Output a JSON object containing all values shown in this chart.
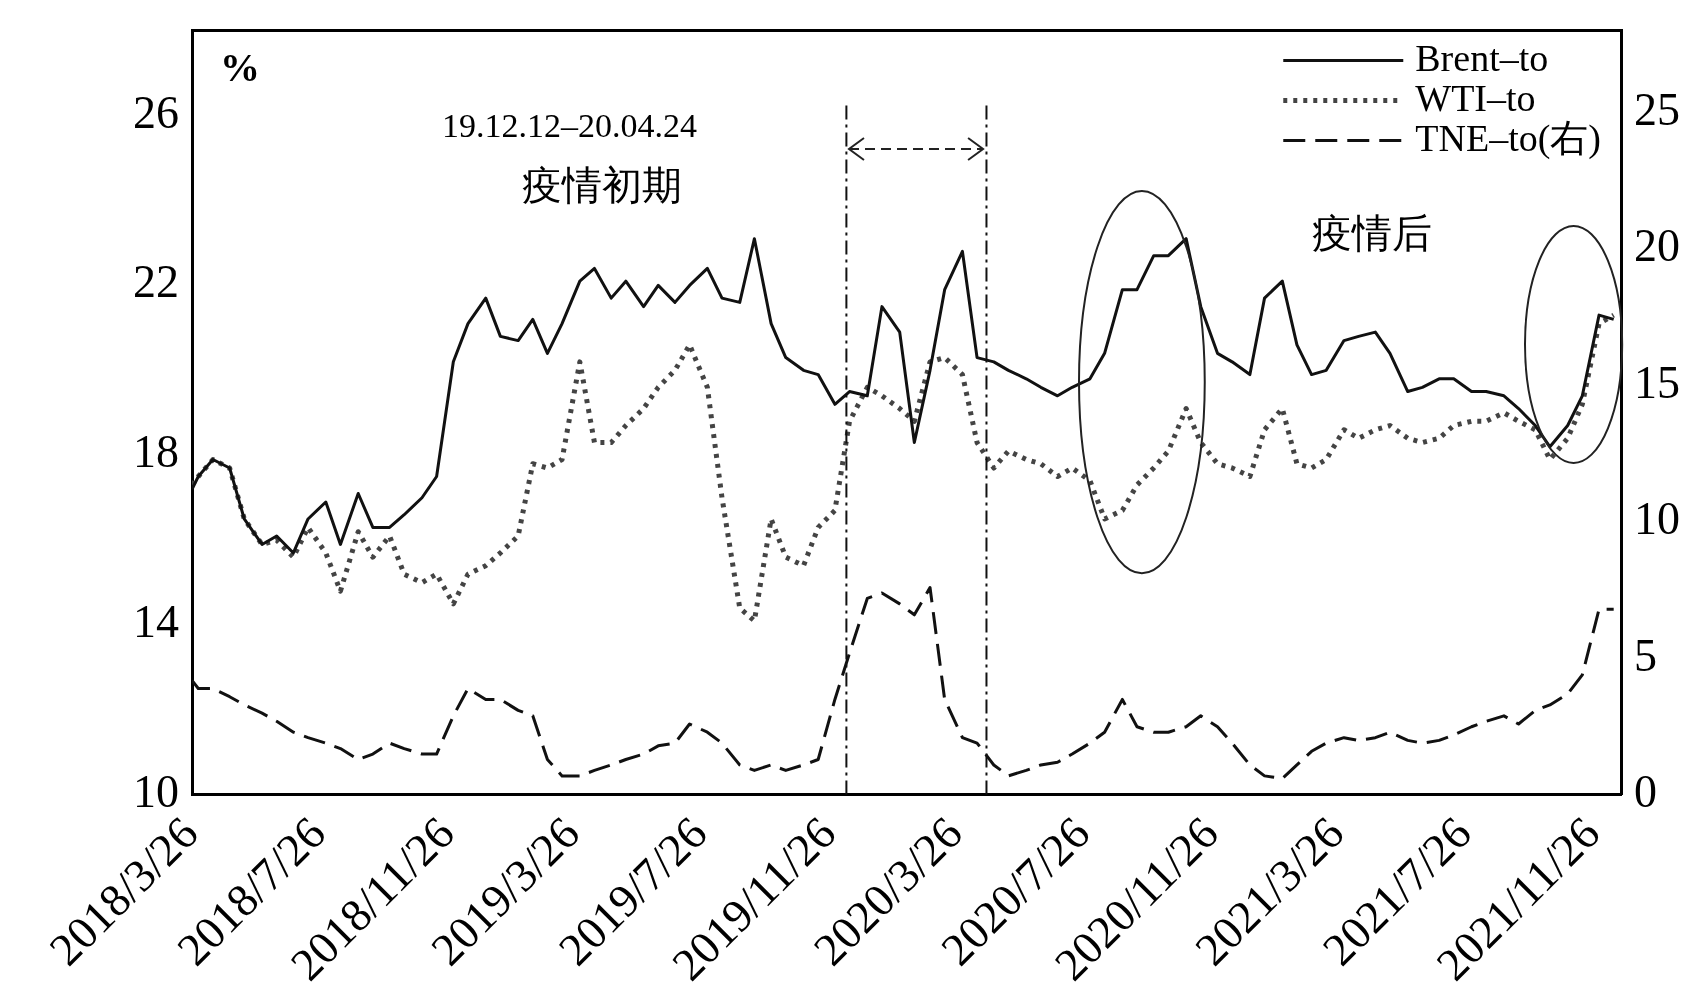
{
  "chart_data": {
    "type": "line",
    "ylabel": "%",
    "x": [
      "2018-03-26",
      "2018-04-01",
      "2018-04-15",
      "2018-05-01",
      "2018-05-15",
      "2018-06-01",
      "2018-06-15",
      "2018-07-01",
      "2018-07-15",
      "2018-08-01",
      "2018-08-15",
      "2018-09-01",
      "2018-09-15",
      "2018-10-01",
      "2018-10-15",
      "2018-11-01",
      "2018-11-15",
      "2018-12-01",
      "2018-12-15",
      "2019-01-01",
      "2019-01-15",
      "2019-02-01",
      "2019-02-15",
      "2019-03-01",
      "2019-03-15",
      "2019-04-01",
      "2019-04-15",
      "2019-05-01",
      "2019-05-15",
      "2019-06-01",
      "2019-06-15",
      "2019-07-01",
      "2019-07-15",
      "2019-08-01",
      "2019-08-15",
      "2019-09-01",
      "2019-09-15",
      "2019-10-01",
      "2019-10-15",
      "2019-11-01",
      "2019-11-15",
      "2019-12-01",
      "2019-12-15",
      "2020-01-01",
      "2020-01-15",
      "2020-02-01",
      "2020-02-15",
      "2020-03-01",
      "2020-03-15",
      "2020-04-01",
      "2020-04-15",
      "2020-05-01",
      "2020-05-15",
      "2020-06-01",
      "2020-06-15",
      "2020-07-01",
      "2020-07-15",
      "2020-08-01",
      "2020-08-15",
      "2020-09-01",
      "2020-09-15",
      "2020-10-01",
      "2020-10-15",
      "2020-11-01",
      "2020-11-15",
      "2020-12-01",
      "2020-12-15",
      "2021-01-01",
      "2021-01-15",
      "2021-02-01",
      "2021-02-15",
      "2021-03-01",
      "2021-03-15",
      "2021-04-01",
      "2021-04-15",
      "2021-05-01",
      "2021-05-15",
      "2021-06-01",
      "2021-06-15",
      "2021-07-01",
      "2021-07-15",
      "2021-08-01",
      "2021-08-15",
      "2021-09-01",
      "2021-09-15",
      "2021-10-01",
      "2021-10-15",
      "2021-11-01",
      "2021-11-15",
      "2021-12-01",
      "2021-12-15"
    ],
    "series": [
      {
        "name": "Brent–to",
        "color": "#111111",
        "line_style": "solid",
        "values": [
          17.2,
          17.5,
          17.9,
          17.7,
          16.5,
          15.9,
          16.1,
          15.7,
          16.5,
          16.9,
          15.9,
          17.1,
          16.3,
          16.3,
          16.6,
          17.0,
          17.5,
          20.2,
          21.1,
          21.7,
          20.8,
          20.7,
          21.2,
          20.4,
          21.1,
          22.1,
          22.4,
          21.7,
          22.1,
          21.5,
          22.0,
          21.6,
          22.0,
          22.4,
          21.7,
          21.6,
          23.1,
          21.1,
          20.3,
          20.0,
          19.9,
          19.2,
          19.5,
          19.4,
          21.5,
          20.9,
          18.3,
          20.0,
          21.9,
          22.8,
          20.3,
          20.2,
          20.0,
          19.8,
          19.6,
          19.4,
          19.6,
          19.8,
          20.4,
          21.9,
          21.9,
          22.7,
          22.7,
          23.1,
          21.5,
          20.4,
          20.2,
          19.9,
          21.7,
          22.1,
          20.6,
          19.9,
          20.0,
          20.7,
          20.8,
          20.9,
          20.4,
          19.5,
          19.6,
          19.8,
          19.8,
          19.5,
          19.5,
          19.4,
          19.1,
          18.7,
          18.2,
          18.7,
          19.4,
          21.3,
          21.2
        ]
      },
      {
        "name": "WTI–to",
        "color": "#444444",
        "line_style": "dotted",
        "values": [
          17.3,
          17.5,
          17.9,
          17.7,
          16.5,
          15.9,
          16.0,
          15.6,
          16.3,
          15.7,
          14.8,
          16.2,
          15.6,
          16.1,
          15.2,
          15.0,
          15.2,
          14.5,
          15.2,
          15.4,
          15.7,
          16.1,
          17.8,
          17.7,
          17.9,
          20.2,
          18.3,
          18.3,
          18.7,
          19.1,
          19.6,
          20.0,
          20.6,
          19.6,
          17.0,
          14.4,
          14.1,
          16.5,
          15.6,
          15.4,
          16.3,
          16.7,
          18.8,
          19.6,
          19.4,
          19.1,
          18.8,
          20.2,
          20.3,
          19.9,
          18.3,
          17.7,
          18.1,
          17.9,
          17.8,
          17.5,
          17.7,
          17.4,
          16.5,
          16.7,
          17.3,
          17.7,
          18.1,
          19.1,
          18.3,
          17.8,
          17.7,
          17.5,
          18.6,
          19.1,
          17.8,
          17.7,
          17.9,
          18.6,
          18.4,
          18.6,
          18.7,
          18.4,
          18.3,
          18.4,
          18.7,
          18.8,
          18.8,
          19.0,
          18.8,
          18.6,
          17.9,
          18.4,
          19.2,
          21.1,
          21.3
        ]
      },
      {
        "name": "TNE–to(右)",
        "color": "#111111",
        "line_style": "dashed",
        "axis": "y2",
        "values": [
          4.2,
          3.9,
          3.9,
          3.6,
          3.3,
          3.0,
          2.7,
          2.3,
          2.1,
          1.9,
          1.7,
          1.3,
          1.5,
          1.9,
          1.7,
          1.5,
          1.5,
          2.9,
          3.9,
          3.5,
          3.5,
          3.1,
          2.9,
          1.3,
          0.7,
          0.7,
          0.9,
          1.1,
          1.3,
          1.5,
          1.8,
          1.9,
          2.6,
          2.3,
          1.9,
          1.1,
          0.9,
          1.1,
          0.9,
          1.1,
          1.3,
          3.5,
          5.2,
          7.2,
          7.4,
          7.0,
          6.6,
          7.6,
          3.5,
          2.1,
          1.9,
          1.1,
          0.7,
          0.9,
          1.1,
          1.2,
          1.5,
          1.9,
          2.3,
          3.5,
          2.5,
          2.3,
          2.3,
          2.5,
          2.9,
          2.5,
          1.9,
          1.1,
          0.7,
          0.6,
          1.1,
          1.6,
          1.9,
          2.1,
          2.0,
          2.1,
          2.3,
          2.0,
          1.9,
          2.0,
          2.2,
          2.5,
          2.7,
          2.9,
          2.6,
          3.1,
          3.3,
          3.7,
          4.4,
          6.8,
          6.8
        ]
      }
    ],
    "xlim": [
      "2018-03-26",
      "2021-12-22"
    ],
    "xticks": [
      {
        "value": "2018-03-26",
        "label": "2018/3/26"
      },
      {
        "value": "2018-07-26",
        "label": "2018/7/26"
      },
      {
        "value": "2018-11-26",
        "label": "2018/11/26"
      },
      {
        "value": "2019-03-26",
        "label": "2019/3/26"
      },
      {
        "value": "2019-07-26",
        "label": "2019/7/26"
      },
      {
        "value": "2019-11-26",
        "label": "2019/11/26"
      },
      {
        "value": "2020-03-26",
        "label": "2020/3/26"
      },
      {
        "value": "2020-07-26",
        "label": "2020/7/26"
      },
      {
        "value": "2020-11-26",
        "label": "2020/11/26"
      },
      {
        "value": "2021-03-26",
        "label": "2021/3/26"
      },
      {
        "value": "2021-07-26",
        "label": "2021/7/26"
      },
      {
        "value": "2021-11-26",
        "label": "2021/11/26"
      }
    ],
    "ylim": [
      10,
      28
    ],
    "yticks": [
      10,
      14,
      18,
      22,
      26
    ],
    "y2lim": [
      0,
      28
    ],
    "y2ticks": [
      0,
      5,
      10,
      15,
      20,
      25
    ],
    "ref_lines": [
      {
        "axis": "x",
        "value": "2019-12-12",
        "color": "#111111",
        "line_style": "dashed"
      },
      {
        "axis": "x",
        "value": "2020-04-24",
        "color": "#111111",
        "line_style": "dashed"
      }
    ],
    "annotations": [
      "19.12.12–20.04.24",
      "疫情初期",
      "疫情后"
    ],
    "legend": "top right",
    "grid": false,
    "marker": "none"
  }
}
